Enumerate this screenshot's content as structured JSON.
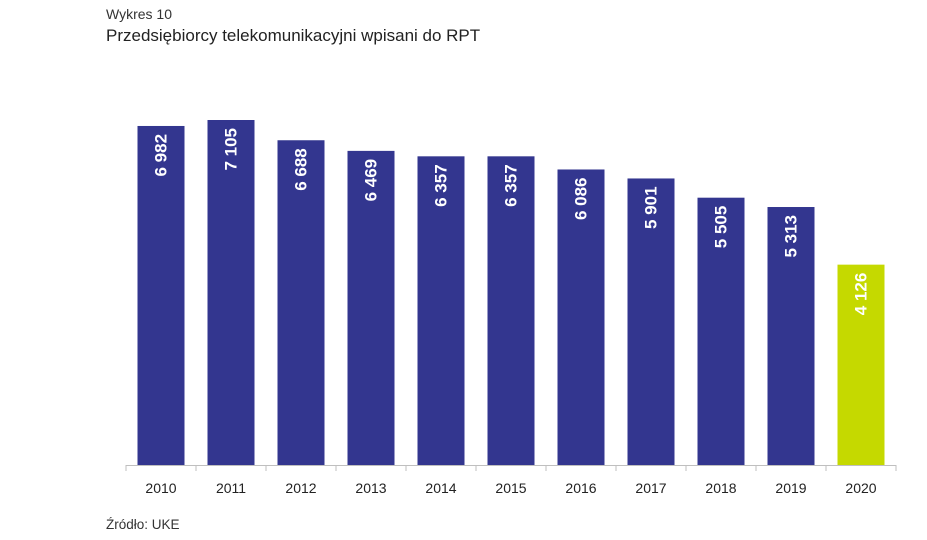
{
  "header": {
    "chart_number": "Wykres 10",
    "title": "Przedsiębiorcy telekomunikacyjni wpisani do RPT"
  },
  "footer": {
    "source": "Źródło: UKE"
  },
  "colors": {
    "bar": "#33368f",
    "highlight": "#c5d900",
    "axis": "#bfbfbf"
  },
  "chart_data": {
    "type": "bar",
    "title": "Przedsiębiorcy telekomunikacyjni wpisani do RPT",
    "xlabel": "",
    "ylabel": "",
    "categories": [
      "2010",
      "2011",
      "2012",
      "2013",
      "2014",
      "2015",
      "2016",
      "2017",
      "2018",
      "2019",
      "2020"
    ],
    "values": [
      6982,
      7105,
      6688,
      6469,
      6357,
      6357,
      6086,
      5901,
      5505,
      5313,
      4126
    ],
    "value_labels": [
      "6 982",
      "7 105",
      "6 688",
      "6 469",
      "6 357",
      "6 357",
      "6 086",
      "5 901",
      "5 505",
      "5 313",
      "4 126"
    ],
    "highlight_index": 10,
    "ylim": [
      0,
      7105
    ],
    "grid": false,
    "legend": "none"
  }
}
